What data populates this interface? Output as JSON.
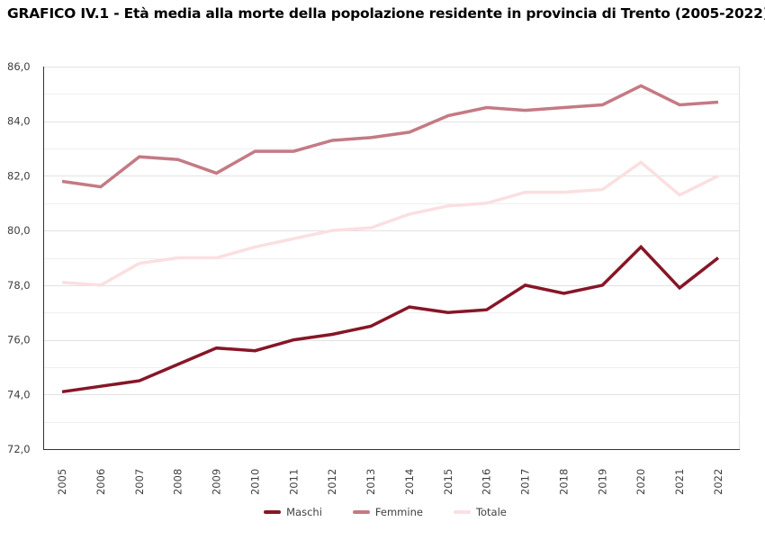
{
  "chart_data": {
    "type": "line",
    "title": "GRAFICO IV.1 - Età media alla morte della popolazione residente in provincia di Trento (2005-2022)",
    "xlabel": "",
    "ylabel": "",
    "ylim": [
      72,
      86
    ],
    "yticks": [
      72,
      74,
      76,
      78,
      80,
      82,
      84,
      86
    ],
    "ytick_labels": [
      "72,0",
      "74,0",
      "76,0",
      "78,0",
      "80,0",
      "82,0",
      "84,0",
      "86,0"
    ],
    "minor_grid_step": 1,
    "grid": true,
    "legend_position": "bottom-center",
    "x": [
      "2005",
      "2006",
      "2007",
      "2008",
      "2009",
      "2010",
      "2011",
      "2012",
      "2013",
      "2014",
      "2015",
      "2016",
      "2017",
      "2018",
      "2019",
      "2020",
      "2021",
      "2022"
    ],
    "series": [
      {
        "name": "Maschi",
        "color": "#861627",
        "values": [
          74.1,
          74.3,
          74.5,
          75.1,
          75.7,
          75.6,
          76.0,
          76.2,
          76.5,
          77.2,
          77.0,
          77.1,
          78.0,
          77.7,
          78.0,
          79.4,
          77.9,
          79.0
        ]
      },
      {
        "name": "Femmine",
        "color": "#c47a84",
        "values": [
          81.8,
          81.6,
          82.7,
          82.6,
          82.1,
          82.9,
          82.9,
          83.3,
          83.4,
          83.6,
          84.2,
          84.5,
          84.4,
          84.5,
          84.6,
          85.3,
          84.6,
          84.7
        ]
      },
      {
        "name": "Totale",
        "color": "#fbdfe1",
        "values": [
          78.1,
          78.0,
          78.8,
          79.0,
          79.0,
          79.4,
          79.7,
          80.0,
          80.1,
          80.6,
          80.9,
          81.0,
          81.4,
          81.4,
          81.5,
          82.5,
          81.3,
          82.0
        ]
      }
    ]
  }
}
